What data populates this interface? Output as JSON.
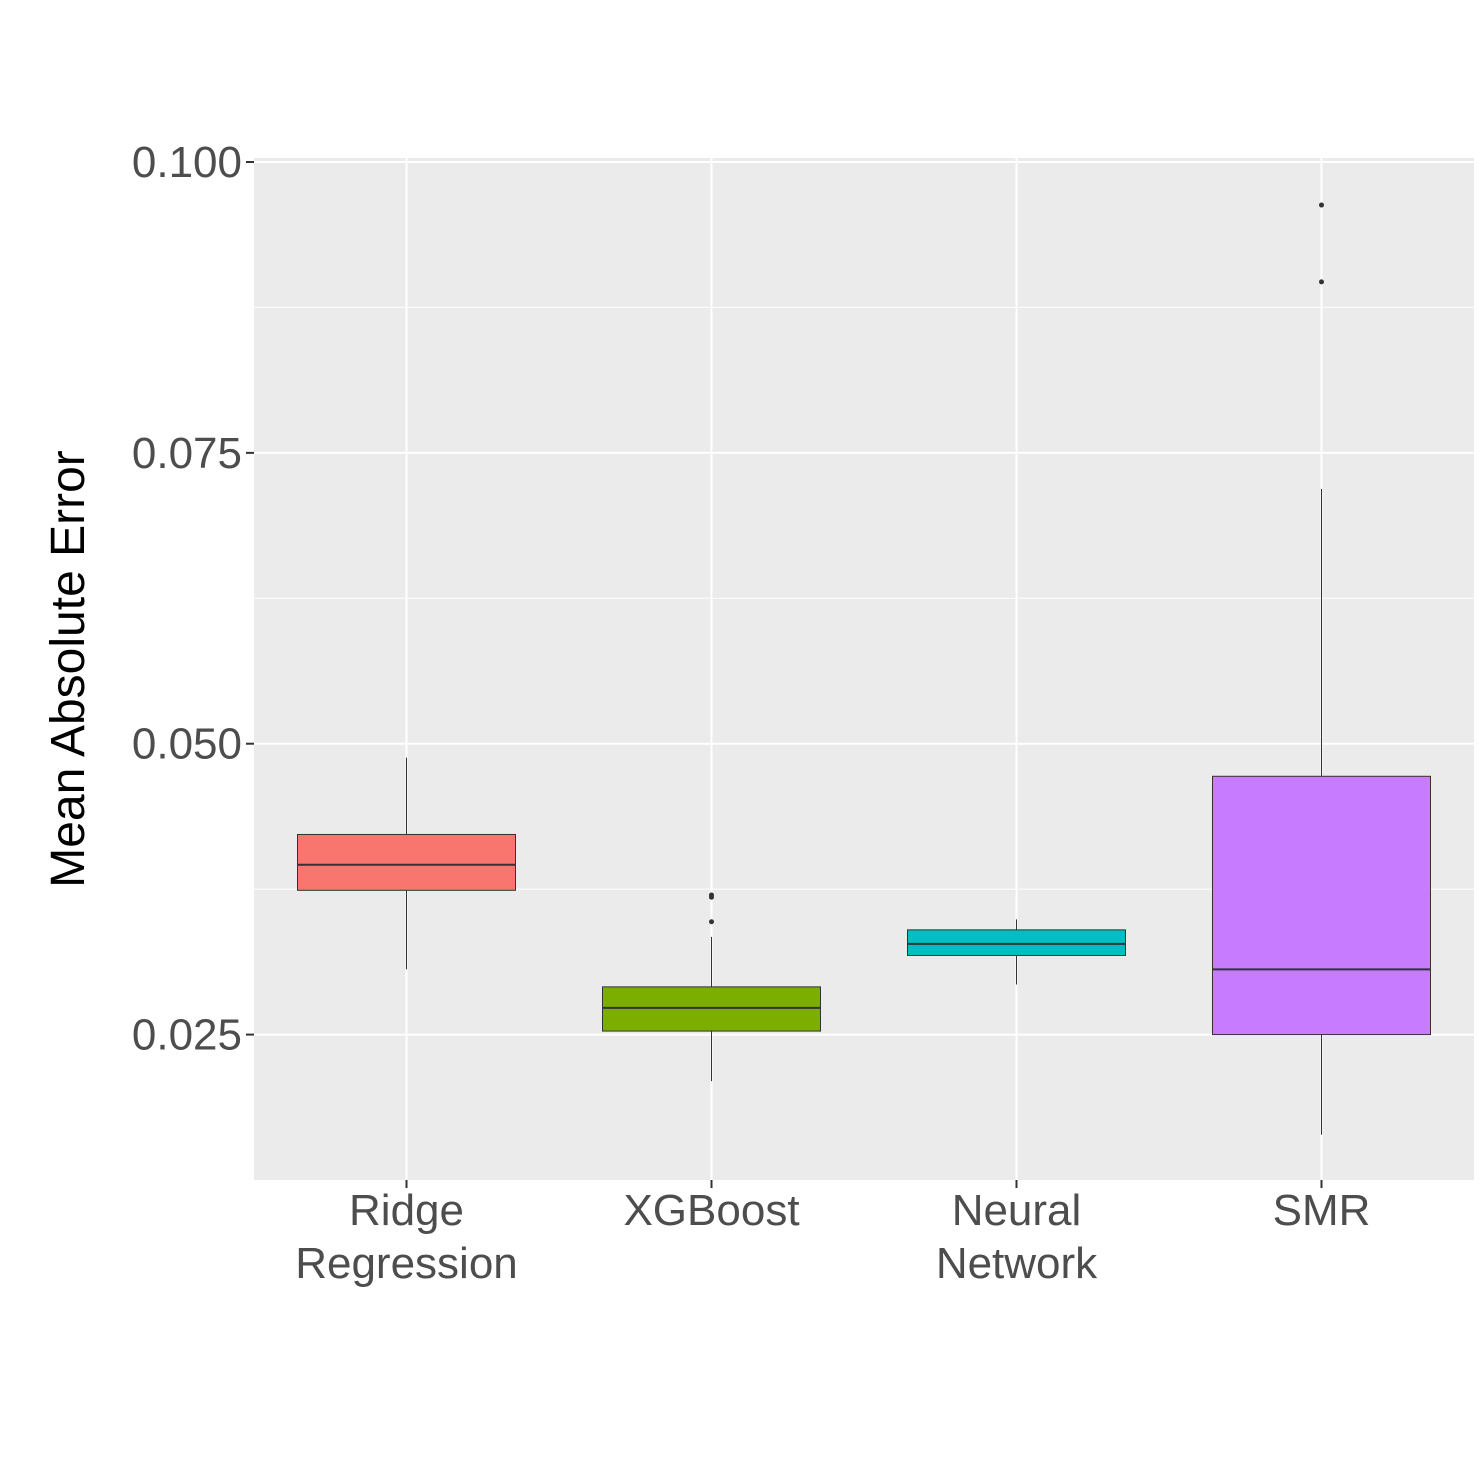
{
  "chart_data": {
    "type": "box",
    "title": "",
    "xlabel": "",
    "ylabel": "Mean Absolute Error",
    "ylim": [
      0.0125,
      0.1
    ],
    "y_ticks": [
      "0.025",
      "0.050",
      "0.075",
      "0.100"
    ],
    "grid": true,
    "legend": "none",
    "categories": [
      [
        "Ridge",
        "Regression"
      ],
      [
        "XGBoost"
      ],
      [
        "Neural",
        "Network"
      ],
      [
        "SMR"
      ]
    ],
    "boxes": [
      {
        "q1": 0.0374,
        "median": 0.0396,
        "q3": 0.0422,
        "whisker_low": 0.0306,
        "whisker_high": 0.0488,
        "outliers": [],
        "color": "#F8766D"
      },
      {
        "q1": 0.0253,
        "median": 0.0273,
        "q3": 0.0291,
        "whisker_low": 0.021,
        "whisker_high": 0.0334,
        "outliers": [
          0.0347,
          0.0368,
          0.037
        ],
        "color": "#7CAE00"
      },
      {
        "q1": 0.0318,
        "median": 0.0328,
        "q3": 0.034,
        "whisker_low": 0.0293,
        "whisker_high": 0.0349,
        "outliers": [],
        "color": "#00BFC4"
      },
      {
        "q1": 0.025,
        "median": 0.0306,
        "q3": 0.0472,
        "whisker_low": 0.0164,
        "whisker_high": 0.0719,
        "outliers": [
          0.0897,
          0.0963
        ],
        "color": "#C77CFF"
      }
    ]
  }
}
